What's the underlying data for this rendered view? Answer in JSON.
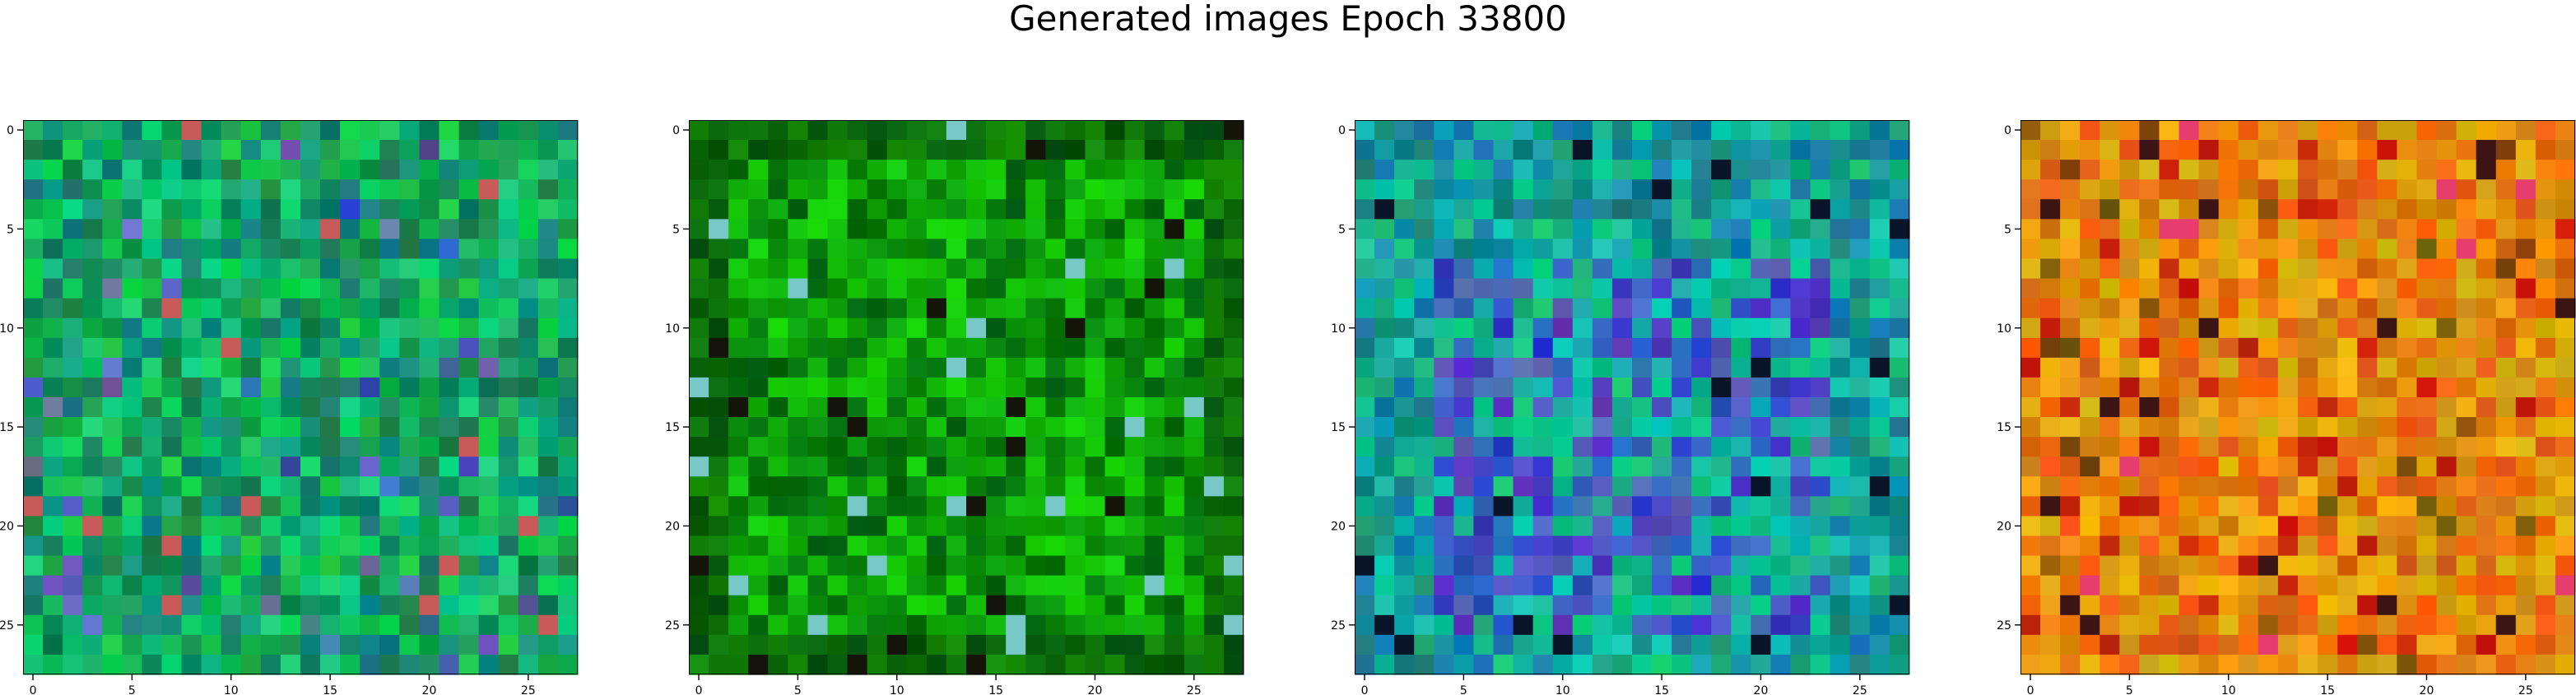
{
  "suptitle": "Generated images Epoch 33800",
  "chart_data": [
    {
      "type": "heatmap",
      "palette": "green",
      "xlim": [
        -0.5,
        27.5
      ],
      "ylim": [
        27.5,
        -0.5
      ],
      "xticks": [
        "0",
        "5",
        "10",
        "15",
        "20",
        "25"
      ],
      "yticks": [
        "0",
        "5",
        "10",
        "15",
        "20",
        "25"
      ],
      "grid": false
    },
    {
      "type": "heatmap",
      "palette": "bright-green",
      "xlim": [
        -0.5,
        27.5
      ],
      "ylim": [
        27.5,
        -0.5
      ],
      "xticks": [
        "0",
        "5",
        "10",
        "15",
        "20",
        "25"
      ],
      "yticks": [
        "0",
        "5",
        "10",
        "15",
        "20",
        "25"
      ],
      "grid": false
    },
    {
      "type": "heatmap",
      "palette": "blue-teal",
      "xlim": [
        -0.5,
        27.5
      ],
      "ylim": [
        27.5,
        -0.5
      ],
      "xticks": [
        "0",
        "5",
        "10",
        "15",
        "20",
        "25"
      ],
      "yticks": [
        "0",
        "5",
        "10",
        "15",
        "20",
        "25"
      ],
      "grid": false
    },
    {
      "type": "heatmap",
      "palette": "orange",
      "xlim": [
        -0.5,
        27.5
      ],
      "ylim": [
        27.5,
        -0.5
      ],
      "xticks": [
        "0",
        "5",
        "10",
        "15",
        "20",
        "25"
      ],
      "yticks": [
        "0",
        "5",
        "10",
        "15",
        "20",
        "25"
      ],
      "grid": false
    }
  ]
}
